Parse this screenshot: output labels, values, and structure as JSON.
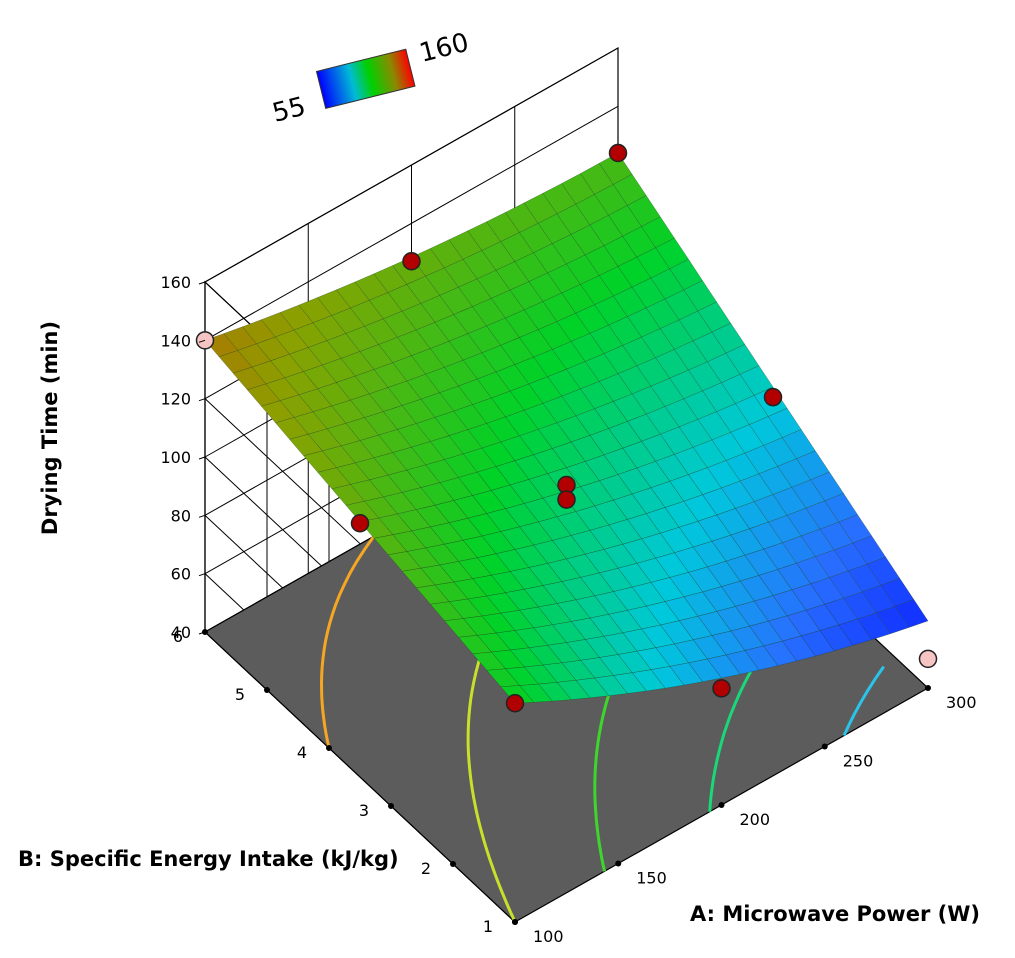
{
  "chart_data": {
    "type": "surface3d",
    "title": "",
    "xlabel": "A: Microwave Power (W)",
    "ylabel": "B: Specific Energy Intake (kJ/kg)",
    "zlabel": "Drying Time (min)",
    "x_ticks": [
      "100",
      "150",
      "200",
      "250",
      "300"
    ],
    "y_ticks": [
      "1",
      "2",
      "3",
      "4",
      "5",
      "6"
    ],
    "z_ticks": [
      "40",
      "60",
      "80",
      "100",
      "120",
      "140",
      "160"
    ],
    "xlim": [
      100,
      300
    ],
    "ylim": [
      1,
      6
    ],
    "zlim": [
      40,
      160
    ],
    "colorbar": {
      "min_label": "55",
      "max_label": "160",
      "min": 55,
      "max": 160
    },
    "surface_corners": [
      {
        "x": 100,
        "y": 1,
        "z": 115
      },
      {
        "x": 300,
        "y": 1,
        "z": 63
      },
      {
        "x": 100,
        "y": 6,
        "z": 140
      },
      {
        "x": 300,
        "y": 6,
        "z": 124
      }
    ],
    "contour_levels": [
      {
        "value": 130,
        "color": "#f5a623"
      },
      {
        "value": 115,
        "color": "#c8e02a"
      },
      {
        "value": 100,
        "color": "#3ed62d"
      },
      {
        "value": 85,
        "color": "#19d877"
      },
      {
        "value": 70,
        "color": "#2ac4ea"
      }
    ],
    "design_points": [
      {
        "x": 100,
        "y": 6,
        "z": 140,
        "status": "below"
      },
      {
        "x": 100,
        "y": 3.5,
        "z": 127,
        "status": "above"
      },
      {
        "x": 200,
        "y": 6,
        "z": 127,
        "status": "above"
      },
      {
        "x": 300,
        "y": 6,
        "z": 124,
        "status": "above"
      },
      {
        "x": 200,
        "y": 3.5,
        "z": 100,
        "status": "above"
      },
      {
        "x": 200,
        "y": 3.5,
        "z": 95,
        "status": "above"
      },
      {
        "x": 100,
        "y": 1,
        "z": 115,
        "status": "above"
      },
      {
        "x": 300,
        "y": 3.5,
        "z": 90,
        "status": "above"
      },
      {
        "x": 200,
        "y": 1,
        "z": 80,
        "status": "above"
      },
      {
        "x": 300,
        "y": 1,
        "z": 50,
        "status": "below"
      }
    ],
    "colors": {
      "floor": "#5c5c5c",
      "point_above": "#b20000",
      "point_below": "#f7c4c4",
      "mesh": "#1f3d1f"
    }
  }
}
